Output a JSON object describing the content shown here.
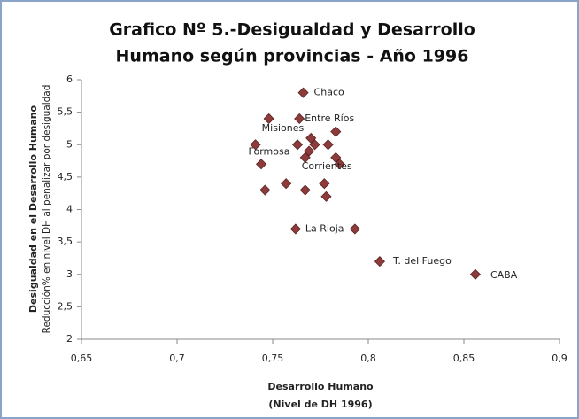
{
  "chart_data": {
    "type": "scatter",
    "title": [
      "Grafico Nº 5.-Desigualdad y Desarrollo",
      "Humano según provincias  - Año 1996"
    ],
    "xlabel": [
      "Desarrollo Humano",
      "(Nivel de DH 1996)"
    ],
    "ylabel": [
      "Desigualdad  en el Desarrollo Humano",
      "Reducción% en nivel DH al penalizar por desigualdad"
    ],
    "xlim": [
      0.65,
      0.9
    ],
    "xticks": [
      {
        "value": 0.65,
        "label": "0,65"
      },
      {
        "value": 0.7,
        "label": "0,7"
      },
      {
        "value": 0.75,
        "label": "0,75"
      },
      {
        "value": 0.8,
        "label": "0,8"
      },
      {
        "value": 0.85,
        "label": "0,85"
      },
      {
        "value": 0.9,
        "label": "0,9"
      }
    ],
    "ylim": [
      2,
      6
    ],
    "yticks": [
      2,
      {
        "value": 2.5,
        "label": "2,5"
      },
      3,
      {
        "value": 3.5,
        "label": "3,5"
      },
      4,
      {
        "value": 4.5,
        "label": "4,5"
      },
      5,
      {
        "value": 5.5,
        "label": "5,5"
      },
      6
    ],
    "grid": false,
    "color": "#8e3b3b",
    "x": [
      0.766,
      0.748,
      0.764,
      0.783,
      0.77,
      0.763,
      0.772,
      0.779,
      0.741,
      0.769,
      0.767,
      0.783,
      0.785,
      0.744,
      0.757,
      0.777,
      0.746,
      0.767,
      0.778,
      0.762,
      0.793,
      0.806,
      0.856
    ],
    "values": [
      5.8,
      5.4,
      5.4,
      5.2,
      5.1,
      5.0,
      5.0,
      5.0,
      5.0,
      4.9,
      4.8,
      4.8,
      4.7,
      4.7,
      4.4,
      4.4,
      4.3,
      4.3,
      4.2,
      3.7,
      3.7,
      3.2,
      3.0
    ],
    "labels": [
      "Chaco",
      "Misiones",
      "Entre Ríos",
      null,
      null,
      null,
      null,
      null,
      "Formosa",
      null,
      "Corrientes",
      null,
      null,
      null,
      null,
      null,
      null,
      null,
      null,
      "La Rioja",
      null,
      "T. del Fuego",
      "CABA"
    ]
  }
}
